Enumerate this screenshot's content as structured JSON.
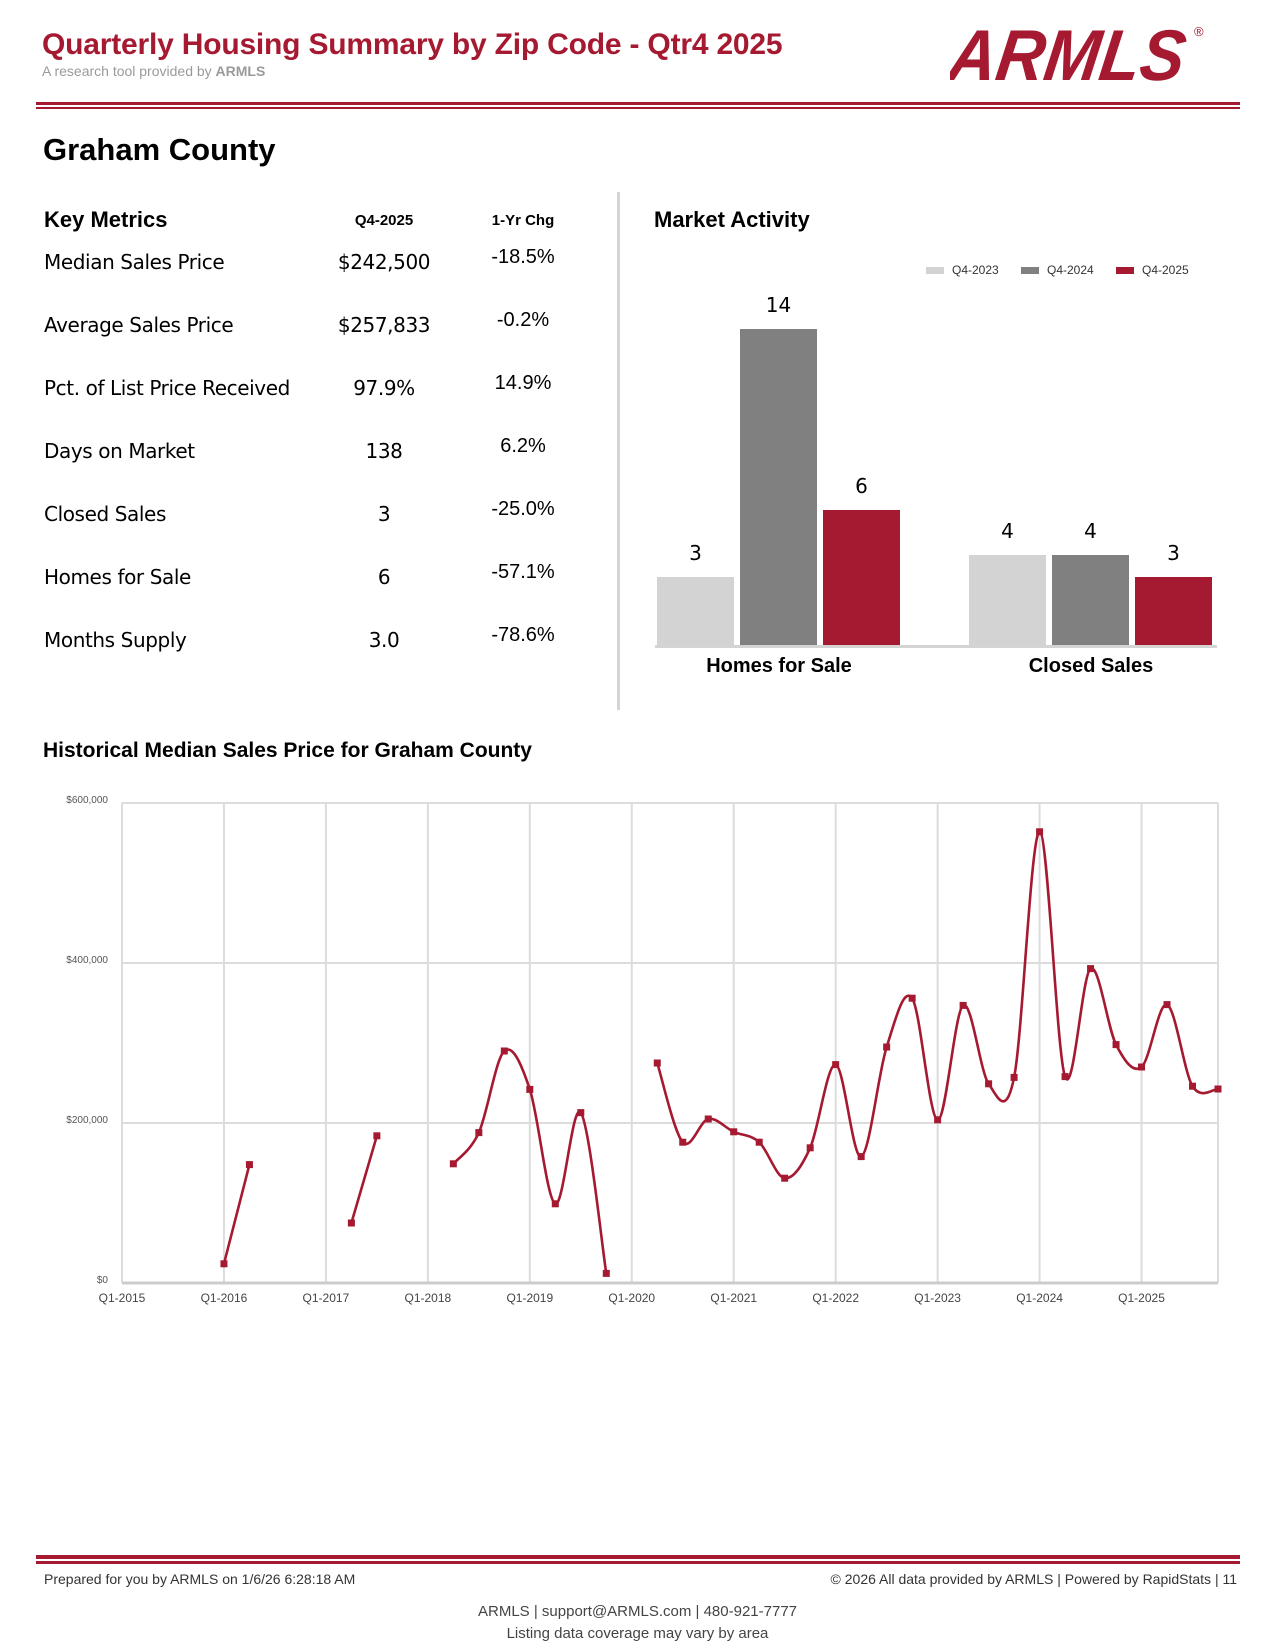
{
  "header": {
    "title": "Quarterly Housing Summary by Zip Code - Qtr4 2025",
    "subtitle_prefix": "A research tool provided by ",
    "subtitle_brand": "ARMLS",
    "logo_text": "ARMLS",
    "logo_mark": "®"
  },
  "colors": {
    "brand": "#a51931",
    "q4_2023": "#d3d3d3",
    "q4_2024": "#808080",
    "q4_2025": "#a51931",
    "grid": "#dcdcdc"
  },
  "area": {
    "name": "Graham County"
  },
  "key_metrics": {
    "title": "Key Metrics",
    "col_current": "Q4-2025",
    "col_change": "1-Yr Chg",
    "rows": [
      {
        "label": "Median Sales Price",
        "value": "$242,500",
        "change": "-18.5%"
      },
      {
        "label": "Average Sales Price",
        "value": "$257,833",
        "change": "-0.2%"
      },
      {
        "label": "Pct. of List Price Received",
        "value": "97.9%",
        "change": "14.9%"
      },
      {
        "label": "Days on Market",
        "value": "138",
        "change": "6.2%"
      },
      {
        "label": "Closed Sales",
        "value": "3",
        "change": "-25.0%"
      },
      {
        "label": "Homes for Sale",
        "value": "6",
        "change": "-57.1%"
      },
      {
        "label": "Months Supply",
        "value": "3.0",
        "change": "-78.6%"
      }
    ]
  },
  "chart_data": [
    {
      "type": "bar",
      "title": "Market Activity",
      "categories": [
        "Homes for Sale",
        "Closed Sales"
      ],
      "series": [
        {
          "name": "Q4-2023",
          "values": [
            3,
            4
          ]
        },
        {
          "name": "Q4-2024",
          "values": [
            14,
            4
          ]
        },
        {
          "name": "Q4-2025",
          "values": [
            6,
            3
          ]
        }
      ],
      "legend": "top-right",
      "ylim": [
        0,
        14
      ],
      "data_labels": true,
      "grid": false
    },
    {
      "type": "line",
      "title": "Historical Median Sales Price for Graham County",
      "xlabel": "",
      "ylabel": "",
      "ylim": [
        0,
        600000
      ],
      "yticks": [
        0,
        200000,
        400000,
        600000
      ],
      "ytick_labels": [
        "$0",
        "$200,000",
        "$400,000",
        "$600,000"
      ],
      "xtick_labels": [
        "Q1-2015",
        "Q1-2016",
        "Q1-2017",
        "Q1-2018",
        "Q1-2019",
        "Q1-2020",
        "Q1-2021",
        "Q1-2022",
        "Q1-2023",
        "Q1-2024",
        "Q1-2025"
      ],
      "grid": true,
      "smooth": true,
      "x": [
        "Q1-2015",
        "Q2-2015",
        "Q3-2015",
        "Q4-2015",
        "Q1-2016",
        "Q2-2016",
        "Q3-2016",
        "Q4-2016",
        "Q1-2017",
        "Q2-2017",
        "Q3-2017",
        "Q4-2017",
        "Q1-2018",
        "Q2-2018",
        "Q3-2018",
        "Q4-2018",
        "Q1-2019",
        "Q2-2019",
        "Q3-2019",
        "Q4-2019",
        "Q1-2020",
        "Q2-2020",
        "Q3-2020",
        "Q4-2020",
        "Q1-2021",
        "Q2-2021",
        "Q3-2021",
        "Q4-2021",
        "Q1-2022",
        "Q2-2022",
        "Q3-2022",
        "Q4-2022",
        "Q1-2023",
        "Q2-2023",
        "Q3-2023",
        "Q4-2023",
        "Q1-2024",
        "Q2-2024",
        "Q3-2024",
        "Q4-2024",
        "Q1-2025",
        "Q2-2025",
        "Q3-2025",
        "Q4-2025"
      ],
      "series": [
        {
          "name": "Median Sales Price",
          "values": [
            null,
            null,
            null,
            null,
            24000,
            148000,
            null,
            null,
            null,
            75000,
            184000,
            null,
            null,
            149000,
            188000,
            290000,
            242000,
            99000,
            213000,
            12000,
            null,
            275000,
            176000,
            205000,
            189000,
            176000,
            131000,
            169000,
            273000,
            158000,
            295000,
            356000,
            204000,
            347000,
            249000,
            257000,
            564000,
            258000,
            393000,
            298000,
            270000,
            348000,
            246000,
            242500
          ]
        }
      ]
    }
  ],
  "footer": {
    "prepared": "Prepared for you by ARMLS on 1/6/26 6:28:18 AM",
    "copyright": "© 2026 All data provided by ARMLS | Powered by RapidStats  | 11",
    "contact": "ARMLS | support@ARMLS.com | 480-921-7777",
    "coverage": "Listing data coverage may vary by area"
  }
}
